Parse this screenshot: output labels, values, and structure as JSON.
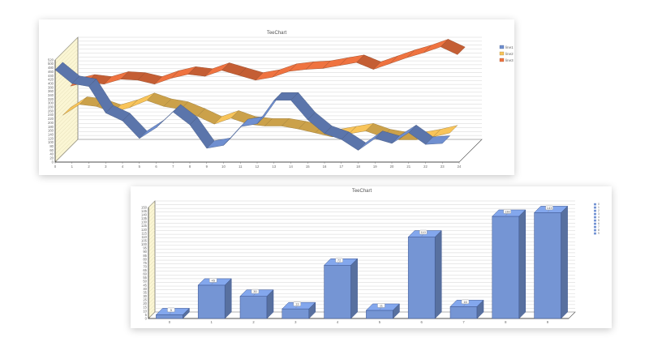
{
  "colors": {
    "line1": "#6f8fd0",
    "line2": "#f8c45a",
    "line3": "#ef7340",
    "bar": "#7595d4",
    "wall": "#fbf6d4",
    "grid": "#c8c8c8"
  },
  "chart_data": [
    {
      "type": "line",
      "title": "TeeChart",
      "style": "3d-ribbon",
      "x": [
        0,
        1,
        2,
        3,
        4,
        5,
        6,
        7,
        8,
        9,
        10,
        11,
        12,
        13,
        14,
        15,
        16,
        17,
        18,
        19,
        20,
        21,
        22,
        23,
        24
      ],
      "ylim": [
        0,
        520
      ],
      "y_ticks": [
        0,
        20,
        40,
        60,
        80,
        100,
        120,
        140,
        160,
        180,
        200,
        220,
        240,
        260,
        280,
        300,
        320,
        340,
        360,
        380,
        400,
        420,
        440,
        460,
        480,
        500,
        520
      ],
      "x_ticks": [
        0,
        1,
        2,
        3,
        4,
        5,
        6,
        7,
        8,
        9,
        10,
        11,
        12,
        13,
        14,
        15,
        16,
        17,
        18,
        19,
        20,
        21,
        22,
        23,
        24
      ],
      "legend_position": "right",
      "grid": true,
      "series": [
        {
          "name": "line1",
          "values": [
            470,
            400,
            385,
            250,
            210,
            120,
            175,
            255,
            190,
            70,
            85,
            180,
            195,
            315,
            315,
            215,
            145,
            115,
            60,
            120,
            95,
            150,
            90,
            95,
            0
          ]
        },
        {
          "name": "line2",
          "values": [
            200,
            255,
            245,
            215,
            240,
            275,
            245,
            230,
            195,
            155,
            185,
            155,
            145,
            145,
            130,
            110,
            90,
            105,
            120,
            90,
            75,
            75,
            90,
            110,
            0
          ]
        },
        {
          "name": "line3",
          "values": [
            310,
            330,
            320,
            345,
            340,
            320,
            350,
            370,
            360,
            390,
            365,
            340,
            355,
            385,
            395,
            400,
            415,
            430,
            395,
            425,
            455,
            480,
            510,
            470,
            0
          ]
        },
        {
          "_note": "unused"
        }
      ]
    },
    {
      "type": "bar",
      "title": "TeeChart",
      "style": "3d",
      "categories": [
        "0",
        "1",
        "2",
        "3",
        "4",
        "5",
        "6",
        "7",
        "8",
        "9"
      ],
      "values": [
        5,
        45,
        30,
        13,
        72,
        11,
        110,
        16,
        138,
        143
      ],
      "data_labels": [
        "5",
        "45",
        "30",
        "13",
        "72",
        "11",
        "110",
        "16",
        "138",
        "143"
      ],
      "ylim": [
        0,
        150
      ],
      "y_ticks": [
        0,
        5,
        10,
        15,
        20,
        25,
        30,
        35,
        40,
        45,
        50,
        55,
        60,
        65,
        70,
        75,
        80,
        85,
        90,
        95,
        100,
        105,
        110,
        115,
        120,
        125,
        130,
        135,
        140,
        145,
        150
      ],
      "legend_entries": [
        "0",
        "1",
        "2",
        "3",
        "4",
        "5",
        "6",
        "7",
        "8",
        "9"
      ],
      "legend_position": "right",
      "grid": true
    }
  ]
}
